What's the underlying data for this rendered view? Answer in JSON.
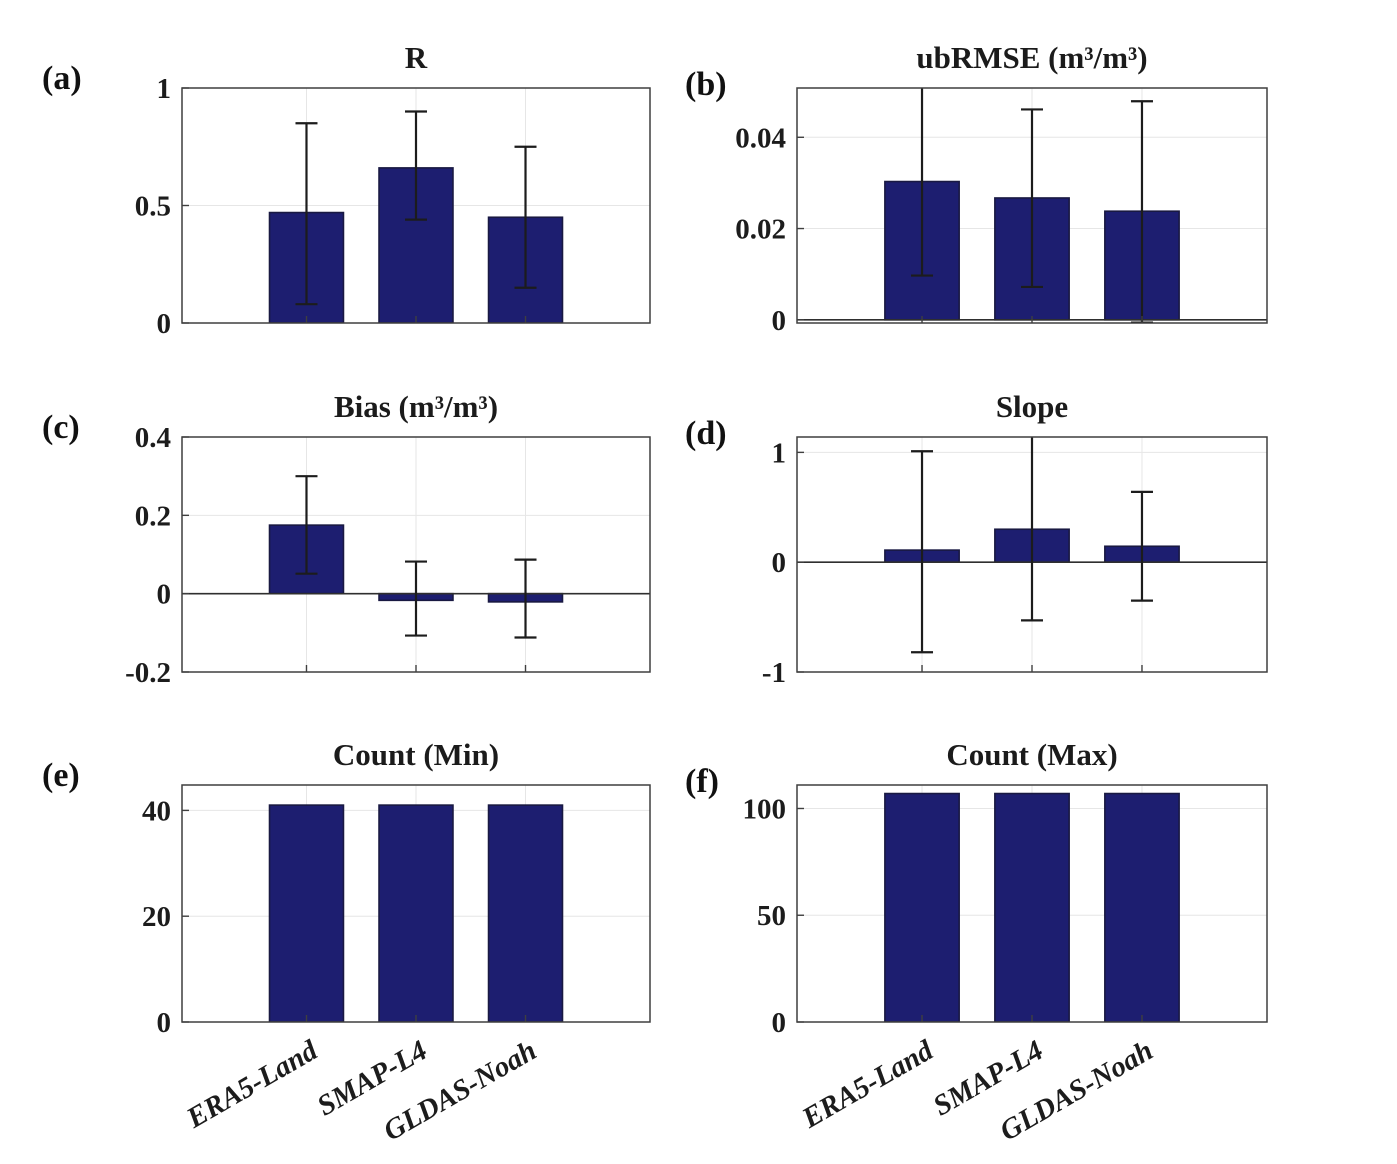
{
  "figure": {
    "colors": {
      "bar": "#1d1e70",
      "bar_edge": "#191942",
      "error": "#1c1c1c",
      "grid": "#e6e6e6",
      "axis": "#3f3f3f",
      "zero_line": "#2f2f2f",
      "text": "#1c1c1c"
    }
  },
  "chart_data": [
    {
      "id": "a",
      "panel_label": "(a)",
      "type": "bar",
      "title": "R",
      "categories": [
        "ERA5-Land",
        "SMAP-L4",
        "GLDAS-Noah"
      ],
      "values": [
        0.47,
        0.66,
        0.45
      ],
      "error_low": [
        0.08,
        0.44,
        0.15
      ],
      "error_high": [
        0.85,
        0.9,
        0.75
      ],
      "ylim": [
        0,
        1
      ],
      "yticks": [
        0,
        0.5,
        1
      ],
      "ytick_labels": [
        "0",
        "0.5",
        "1"
      ],
      "grid": true,
      "zero_line": false,
      "show_xlabels": false,
      "legend": "none"
    },
    {
      "id": "b",
      "panel_label": "(b)",
      "type": "bar",
      "title": "ubRMSE (m³/m³)",
      "categories": [
        "ERA5-Land",
        "SMAP-L4",
        "GLDAS-Noah"
      ],
      "values": [
        0.0303,
        0.0267,
        0.0238
      ],
      "error_low": [
        0.0097,
        0.0072,
        -0.0006
      ],
      "error_high": [
        0.056,
        0.0461,
        0.0479
      ],
      "ylim": [
        -0.0007,
        0.0508
      ],
      "yticks": [
        0,
        0.02,
        0.04
      ],
      "ytick_labels": [
        "0",
        "0.02",
        "0.04"
      ],
      "grid": true,
      "zero_line": true,
      "show_xlabels": false,
      "legend": "none"
    },
    {
      "id": "c",
      "panel_label": "(c)",
      "type": "bar",
      "title": "Bias (m³/m³)",
      "categories": [
        "ERA5-Land",
        "SMAP-L4",
        "GLDAS-Noah"
      ],
      "values": [
        0.175,
        -0.017,
        -0.021
      ],
      "error_low": [
        0.051,
        -0.107,
        -0.112
      ],
      "error_high": [
        0.3,
        0.082,
        0.087
      ],
      "ylim": [
        -0.2,
        0.4
      ],
      "yticks": [
        -0.2,
        0,
        0.2,
        0.4
      ],
      "ytick_labels": [
        "-0.2",
        "0",
        "0.2",
        "0.4"
      ],
      "grid": true,
      "zero_line": true,
      "show_xlabels": false,
      "legend": "none"
    },
    {
      "id": "d",
      "panel_label": "(d)",
      "type": "bar",
      "title": "Slope",
      "categories": [
        "ERA5-Land",
        "SMAP-L4",
        "GLDAS-Noah"
      ],
      "values": [
        0.11,
        0.3,
        0.145
      ],
      "error_low": [
        -0.82,
        -0.53,
        -0.35
      ],
      "error_high": [
        1.01,
        1.3,
        0.64
      ],
      "ylim": [
        -1,
        1.14
      ],
      "yticks": [
        -1,
        0,
        1
      ],
      "ytick_labels": [
        "-1",
        "0",
        "1"
      ],
      "grid": true,
      "zero_line": true,
      "show_xlabels": false,
      "legend": "none"
    },
    {
      "id": "e",
      "panel_label": "(e)",
      "type": "bar",
      "title": "Count (Min)",
      "categories": [
        "ERA5-Land",
        "SMAP-L4",
        "GLDAS-Noah"
      ],
      "values": [
        41,
        41,
        41
      ],
      "ylim": [
        0,
        44.8
      ],
      "yticks": [
        0,
        20,
        40
      ],
      "ytick_labels": [
        "0",
        "20",
        "40"
      ],
      "grid": true,
      "zero_line": false,
      "show_xlabels": true,
      "legend": "none"
    },
    {
      "id": "f",
      "panel_label": "(f)",
      "type": "bar",
      "title": "Count (Max)",
      "categories": [
        "ERA5-Land",
        "SMAP-L4",
        "GLDAS-Noah"
      ],
      "values": [
        107,
        107,
        107
      ],
      "ylim": [
        0,
        111
      ],
      "yticks": [
        0,
        50,
        100
      ],
      "ytick_labels": [
        "0",
        "50",
        "100"
      ],
      "grid": true,
      "zero_line": false,
      "show_xlabels": true,
      "legend": "none"
    }
  ]
}
